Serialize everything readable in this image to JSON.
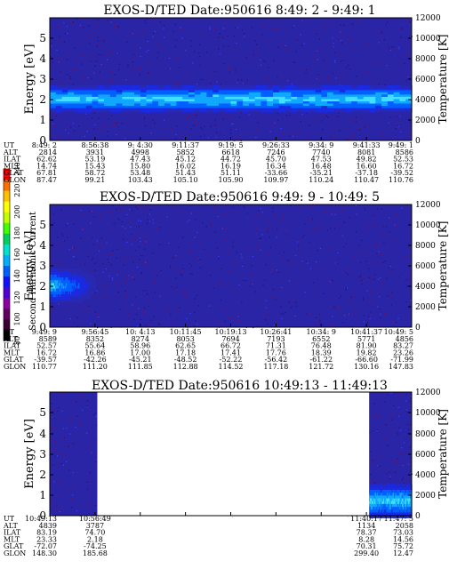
{
  "figure": {
    "colorbar": {
      "label": "Second Harmonic Current",
      "ticks": [
        "240",
        "220",
        "200",
        "180",
        "160",
        "140",
        "120",
        "100",
        "80"
      ],
      "colors": [
        "#000000",
        "#3a0030",
        "#600060",
        "#8a00a0",
        "#5000d0",
        "#1010ff",
        "#0060ff",
        "#00b0ff",
        "#00e0d0",
        "#00d060",
        "#40ff00",
        "#c0ff00",
        "#ffff00",
        "#ffc000",
        "#ff7000",
        "#ff0000"
      ]
    }
  },
  "chart_data": [
    {
      "type": "heatmap",
      "title": "EXOS-D/TED   Date:950616   8:49: 2 - 9:49: 1",
      "ylabel": "Energy [eV]",
      "ylabel_right": "Temperature [K]",
      "ylim": [
        0,
        5
      ],
      "yticks": [
        "0",
        "1",
        "2",
        "3",
        "4",
        "5"
      ],
      "ylim_right": [
        0,
        12000
      ],
      "yticks_right": [
        "0",
        "2000",
        "4000",
        "6000",
        "8000",
        "10000",
        "12000"
      ],
      "data_gaps": [],
      "band": {
        "from_ut": "8:49: 2",
        "to_ut": "9:49: 1",
        "energy_center": 1.7,
        "energy_spread": 0.4
      },
      "orbit_labels": [
        "UT",
        "ALT",
        "ILAT",
        "MLT",
        "GLAT",
        "GLON"
      ],
      "orbit_table": [
        [
          "8:49: 2",
          "8:56:38",
          "9: 4:30",
          "9:11:37",
          "9:19: 5",
          "9:26:33",
          "9:34: 9",
          "9:41:33",
          "9:49: 1"
        ],
        [
          "2814",
          "3931",
          "4998",
          "5852",
          "6618",
          "7246",
          "7740",
          "8081",
          "8586"
        ],
        [
          "62.62",
          "53.19",
          "47.43",
          "45.12",
          "44.72",
          "45.70",
          "47.53",
          "49.82",
          "52.53"
        ],
        [
          "14.74",
          "15.43",
          "15.80",
          "16.02",
          "16.19",
          "16.34",
          "16.48",
          "16.60",
          "16.72"
        ],
        [
          "67.81",
          "58.72",
          "53.48",
          "51.43",
          "51.11",
          "-33.66",
          "-35.21",
          "-37.18",
          "-39.52"
        ],
        [
          "87.47",
          "99.21",
          "103.43",
          "105.10",
          "105.90",
          "109.97",
          "110.24",
          "110.47",
          "110.76"
        ]
      ]
    },
    {
      "type": "heatmap",
      "title": "EXOS-D/TED   Date:950616   9:49: 9 - 10:49: 5",
      "ylabel": "Energy [eV]",
      "ylabel_right": "Temperature [K]",
      "ylim": [
        0,
        5
      ],
      "yticks": [
        "0",
        "1",
        "2",
        "3",
        "4",
        "5"
      ],
      "ylim_right": [
        0,
        12000
      ],
      "yticks_right": [
        "0",
        "2000",
        "4000",
        "6000",
        "8000",
        "10000",
        "12000"
      ],
      "data_gaps": [],
      "band": {
        "from_ut": "9:49: 9",
        "to_ut": "9:56:45",
        "energy_center": 1.7,
        "energy_spread": 0.5
      },
      "orbit_labels": [
        "UT",
        "ALT",
        "ILAT",
        "MLT",
        "GLAT",
        "GLON"
      ],
      "orbit_table": [
        [
          "9:49: 9",
          "9:56:45",
          "10: 4:13",
          "10:11:45",
          "10:19:13",
          "10:26:41",
          "10:34: 9",
          "10:41:37",
          "10:49: 5"
        ],
        [
          "8589",
          "8352",
          "8274",
          "8053",
          "7694",
          "7193",
          "6552",
          "5771",
          "4856"
        ],
        [
          "52.57",
          "55.64",
          "58.96",
          "62.65",
          "66.72",
          "71.31",
          "76.48",
          "81.90",
          "83.27"
        ],
        [
          "16.72",
          "16.86",
          "17.00",
          "17.18",
          "17.41",
          "17.76",
          "18.39",
          "19.82",
          "23.26"
        ],
        [
          "-39.57",
          "-42.26",
          "-45.21",
          "-48.52",
          "-52.22",
          "-56.42",
          "-61.22",
          "-66.60",
          "-71.99"
        ],
        [
          "110.77",
          "111.20",
          "111.85",
          "112.88",
          "114.52",
          "117.18",
          "121.72",
          "130.16",
          "147.83"
        ]
      ]
    },
    {
      "type": "heatmap",
      "title": "EXOS-D/TED   Date:950616   10:49:13 - 11:49:13",
      "ylabel": "Energy [eV]",
      "ylabel_right": "Temperature [K]",
      "ylim": [
        0,
        5
      ],
      "yticks": [
        "0",
        "1",
        "2",
        "3",
        "4",
        "5"
      ],
      "ylim_right": [
        0,
        12000
      ],
      "yticks_right": [
        "0",
        "2000",
        "4000",
        "6000",
        "8000",
        "10000",
        "12000"
      ],
      "data_gaps": [
        {
          "from_ut": "10:56:49",
          "to_ut": "11:40:17"
        }
      ],
      "band": {
        "from_ut": "11:40:17",
        "to_ut": "11:47: 5",
        "energy_center": 0.6,
        "energy_spread": 0.5
      },
      "orbit_labels": [
        "UT",
        "ALT",
        "ILAT",
        "MLT",
        "GLAT",
        "GLON"
      ],
      "orbit_table": [
        [
          "10:49:13",
          "10:56:49",
          "",
          "",
          "",
          "",
          "",
          "11:40:17",
          "11:47: 5"
        ],
        [
          "4839",
          "3787",
          "",
          "",
          "",
          "",
          "",
          "1134",
          "2058"
        ],
        [
          "83.19",
          "74.70",
          "",
          "",
          "",
          "",
          "",
          "78.37",
          "73.03"
        ],
        [
          "23.33",
          "2.18",
          "",
          "",
          "",
          "",
          "",
          "8.28",
          "14.56"
        ],
        [
          "-72.07",
          "-74.25",
          "",
          "",
          "",
          "",
          "",
          "70.31",
          "75.72"
        ],
        [
          "148.30",
          "185.68",
          "",
          "",
          "",
          "",
          "",
          "299.40",
          "12.47"
        ]
      ]
    }
  ]
}
